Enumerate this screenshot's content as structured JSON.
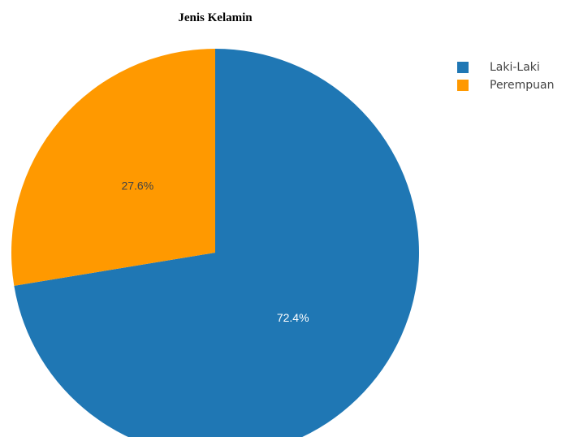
{
  "chart_data": {
    "type": "pie",
    "title": "Jenis Kelamin",
    "slices": [
      {
        "label": "Laki-Laki",
        "value": 72.4,
        "value_label": "72.4%",
        "color": "#1f77b4",
        "text_color": "#ffffff"
      },
      {
        "label": "Perempuan",
        "value": 27.6,
        "value_label": "27.6%",
        "color": "#ff9900",
        "text_color": "#444444"
      }
    ],
    "start": "12 o'clock",
    "direction": "clockwise",
    "legend_position": "top-right"
  }
}
